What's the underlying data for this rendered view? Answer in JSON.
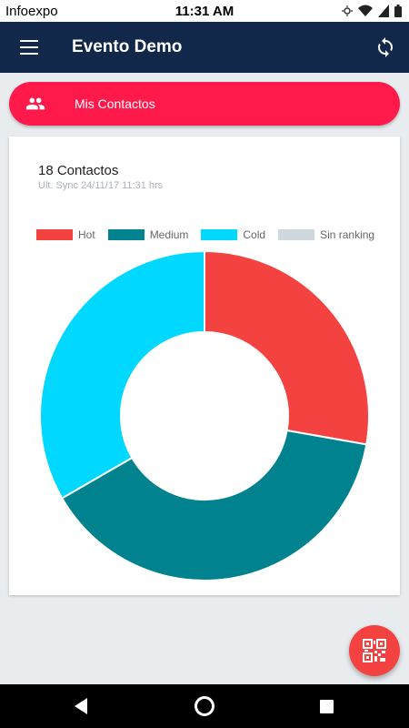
{
  "status_bar": {
    "carrier": "Infoexpo",
    "time": "11:31 AM"
  },
  "app_bar": {
    "title": "Evento Demo"
  },
  "contacts_button": {
    "label": "Mis Contactos"
  },
  "card": {
    "count_label": "18 Contactos",
    "sync_label": "Ult. Sync 24/11/17 11:31 hrs"
  },
  "chart_data": {
    "type": "pie",
    "donut": true,
    "legend_position": "top",
    "series": [
      {
        "name": "Hot",
        "value": 5,
        "color": "#f44240"
      },
      {
        "name": "Medium",
        "value": 7,
        "color": "#00838f"
      },
      {
        "name": "Cold",
        "value": 6,
        "color": "#00d8ff"
      },
      {
        "name": "Sin ranking",
        "value": 0,
        "color": "#cfd8dc"
      }
    ]
  },
  "icons": {
    "menu": "menu-icon",
    "sync": "sync-icon",
    "contacts": "people-icon",
    "fab": "qr-code-icon"
  }
}
